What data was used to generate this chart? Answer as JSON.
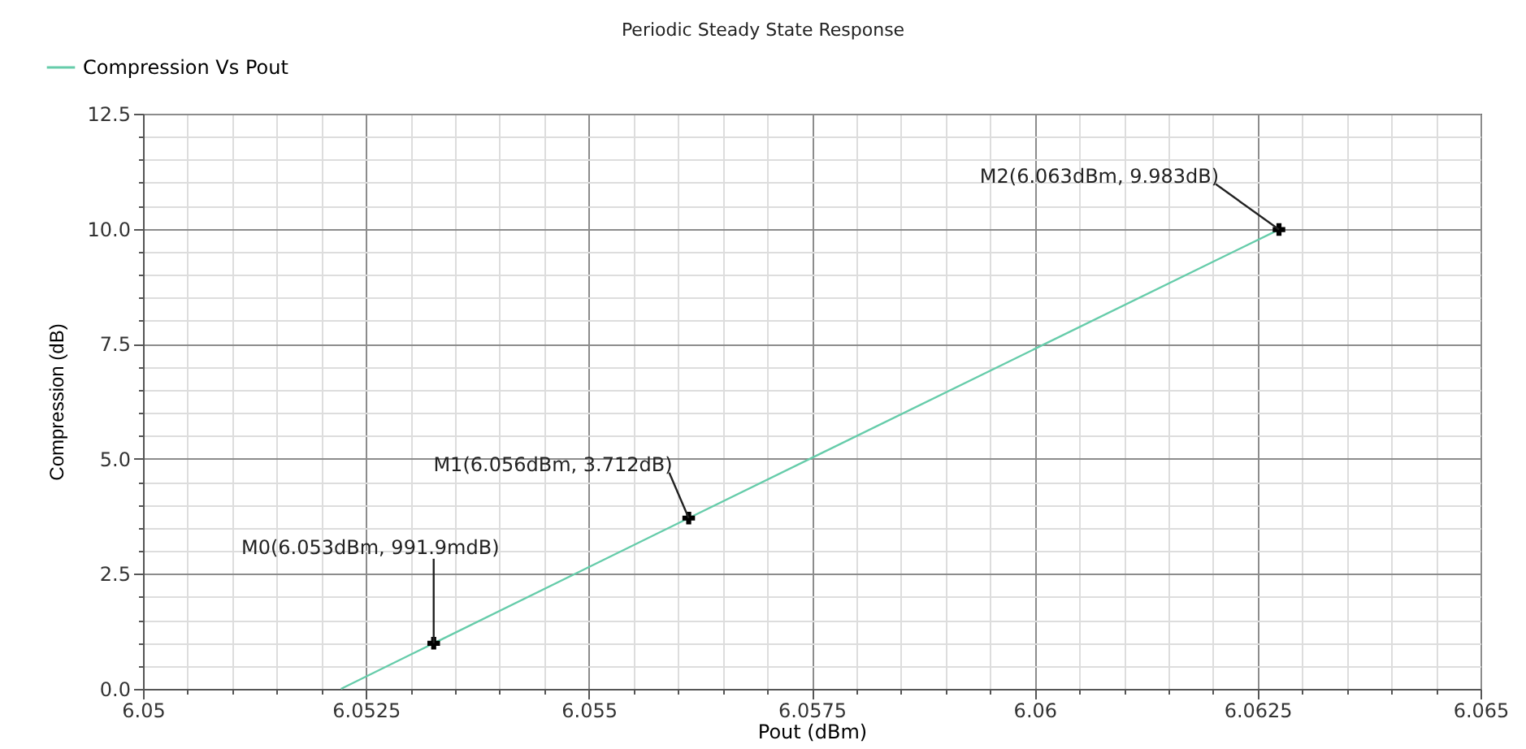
{
  "chart_data": {
    "type": "line",
    "title": "Periodic Steady State Response",
    "xlabel": "Pout (dBm)",
    "ylabel": "Compression (dB)",
    "series": [
      {
        "name": "Compression Vs Pout",
        "color": "#66ccaa",
        "x": [
          6.05222,
          6.05326,
          6.05612,
          6.06274
        ],
        "values": [
          0,
          0.9919,
          3.712,
          9.983
        ]
      },
      {
        "type": "scatter",
        "marker": "cross",
        "color": "#000000",
        "x": [
          6.05326,
          6.05612,
          6.06274
        ],
        "values": [
          0.9919,
          3.712,
          9.983
        ]
      }
    ],
    "annotations": [
      {
        "text": "M0(6.053dBm, 991.9mdB)",
        "x": 6.05326,
        "y": 0.9919
      },
      {
        "text": "M1(6.056dBm, 3.712dB)",
        "x": 6.05612,
        "y": 3.712
      },
      {
        "text": "M2(6.063dBm, 9.983dB)",
        "x": 6.06274,
        "y": 9.983
      }
    ],
    "xlim": [
      6.05,
      6.065
    ],
    "xticks": [
      6.05,
      {
        "value": 6.0505,
        "label": null
      },
      {
        "value": 6.051,
        "label": null
      },
      {
        "value": 6.0515,
        "label": null
      },
      {
        "value": 6.052,
        "label": null
      },
      6.0525,
      {
        "value": 6.053,
        "label": null
      },
      {
        "value": 6.0535,
        "label": null
      },
      {
        "value": 6.054,
        "label": null
      },
      {
        "value": 6.0545,
        "label": null
      },
      6.055,
      {
        "value": 6.0555,
        "label": null
      },
      {
        "value": 6.056,
        "label": null
      },
      {
        "value": 6.0565,
        "label": null
      },
      {
        "value": 6.057,
        "label": null
      },
      6.0575,
      {
        "value": 6.058,
        "label": null
      },
      {
        "value": 6.0585,
        "label": null
      },
      {
        "value": 6.059,
        "label": null
      },
      {
        "value": 6.0595,
        "label": null
      },
      6.06,
      {
        "value": 6.0605,
        "label": null
      },
      {
        "value": 6.061,
        "label": null
      },
      {
        "value": 6.0615,
        "label": null
      },
      {
        "value": 6.062,
        "label": null
      },
      6.0625,
      {
        "value": 6.063,
        "label": null
      },
      {
        "value": 6.0635,
        "label": null
      },
      {
        "value": 6.064,
        "label": null
      },
      {
        "value": 6.0645,
        "label": null
      },
      6.065
    ],
    "ylim": [
      0,
      12.5
    ],
    "yticks": [
      {
        "value": 0,
        "label": "0.0"
      },
      {
        "value": 0.5,
        "label": null
      },
      {
        "value": 1,
        "label": null
      },
      {
        "value": 1.5,
        "label": null
      },
      {
        "value": 2,
        "label": null
      },
      2.5,
      {
        "value": 3,
        "label": null
      },
      {
        "value": 3.5,
        "label": null
      },
      {
        "value": 4,
        "label": null
      },
      {
        "value": 4.5,
        "label": null
      },
      {
        "value": 5,
        "label": "5.0"
      },
      {
        "value": 5.5,
        "label": null
      },
      {
        "value": 6,
        "label": null
      },
      {
        "value": 6.5,
        "label": null
      },
      {
        "value": 7,
        "label": null
      },
      7.5,
      {
        "value": 8,
        "label": null
      },
      {
        "value": 8.5,
        "label": null
      },
      {
        "value": 9,
        "label": null
      },
      {
        "value": 9.5,
        "label": null
      },
      {
        "value": 10,
        "label": "10.0"
      },
      {
        "value": 10.5,
        "label": null
      },
      {
        "value": 11,
        "label": null
      },
      {
        "value": 11.5,
        "label": null
      },
      {
        "value": 12,
        "label": null
      },
      12.5
    ],
    "grid": true,
    "legend": "top left",
    "line_style": "solid"
  }
}
